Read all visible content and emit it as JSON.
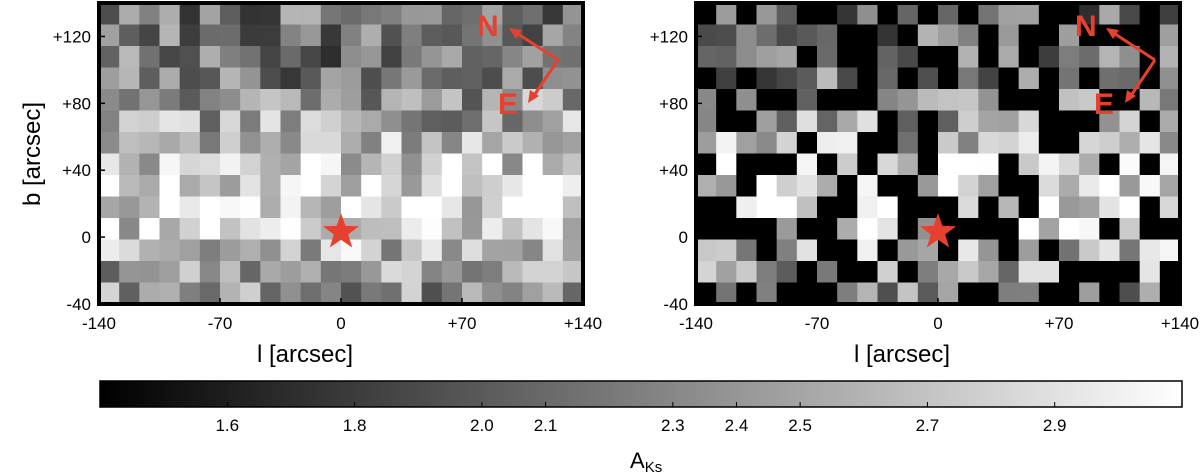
{
  "chart_data": [
    {
      "type": "heatmap",
      "title": "",
      "xlabel": "l [arcsec]",
      "ylabel": "b [arcsec]",
      "xlim": [
        -140,
        140
      ],
      "ylim": [
        -40,
        140
      ],
      "x_ticks": [
        "-140",
        "-70",
        "0",
        "+70",
        "+140"
      ],
      "y_ticks": [
        "+120",
        "+80",
        "+40",
        "0",
        "-40"
      ],
      "grid": "off",
      "markers": [
        {
          "symbol": "star",
          "l": 0,
          "b": 3,
          "color": "#e8402f"
        }
      ],
      "compass": {
        "north_label": "N",
        "east_label": "E",
        "color": "#e8402f"
      },
      "value_range": [
        1.4,
        3.1
      ],
      "masked_values": false
    },
    {
      "type": "heatmap",
      "title": "",
      "xlabel": "l [arcsec]",
      "ylabel": "",
      "xlim": [
        -140,
        140
      ],
      "ylim": [
        -40,
        140
      ],
      "x_ticks": [
        "-140",
        "-70",
        "0",
        "+70",
        "+140"
      ],
      "y_ticks": [
        "+120",
        "+80",
        "+40",
        "0",
        "-40"
      ],
      "grid": "off",
      "markers": [
        {
          "symbol": "star",
          "l": 0,
          "b": 3,
          "color": "#e8402f"
        }
      ],
      "compass": {
        "north_label": "N",
        "east_label": "E",
        "color": "#e8402f"
      },
      "value_range": [
        1.4,
        3.1
      ],
      "masked_values": true
    }
  ],
  "colorbar": {
    "label_main": "A",
    "label_sub": "Ks",
    "ticks": [
      1.6,
      1.8,
      2.0,
      2.1,
      2.3,
      2.4,
      2.5,
      2.7,
      2.9
    ],
    "tick_labels": [
      "1.6",
      "1.8",
      "2.0",
      "2.1",
      "2.3",
      "2.4",
      "2.5",
      "2.7",
      "2.9"
    ],
    "range": [
      1.4,
      3.1
    ],
    "colormap": "grayscale black-to-white"
  },
  "colors": {
    "accent": "#e8402f",
    "frame": "#000000"
  }
}
